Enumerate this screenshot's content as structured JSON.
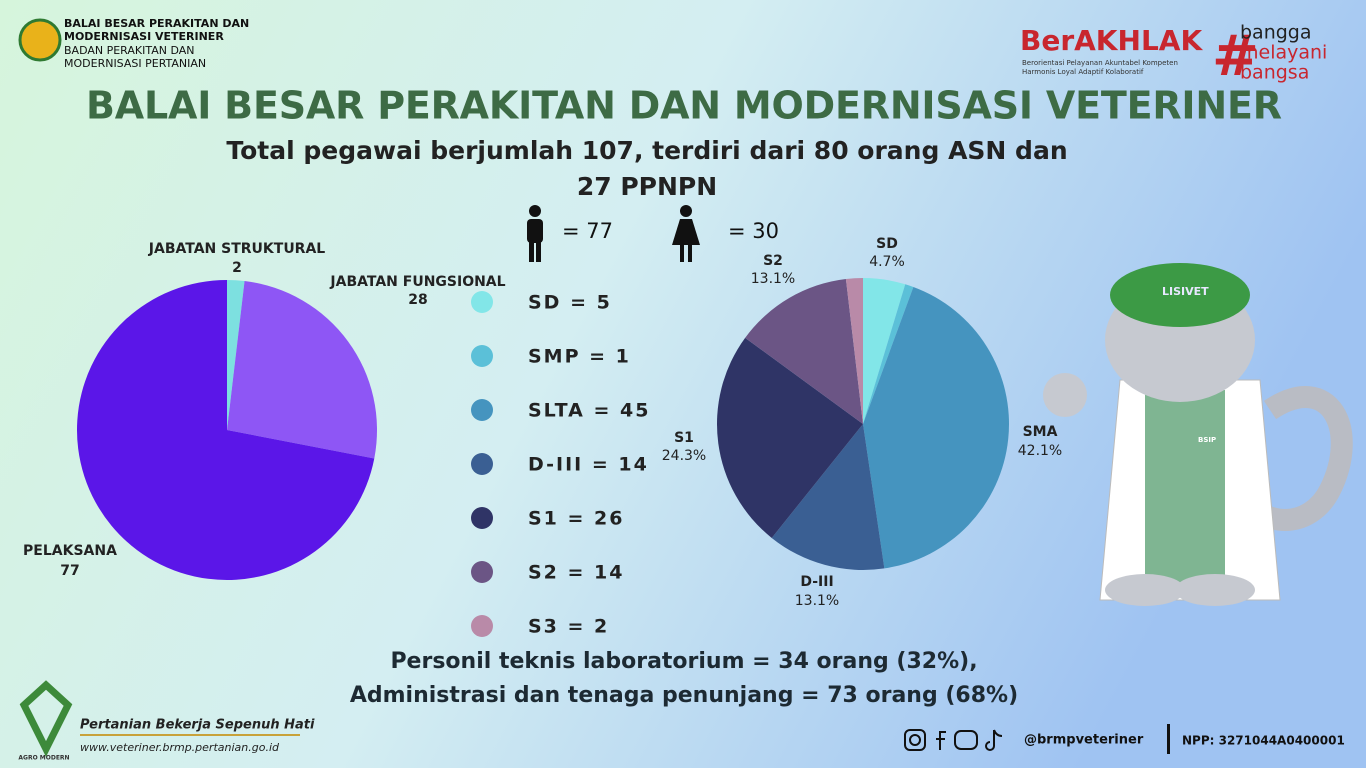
{
  "header": {
    "org_line1": "BALAI BESAR PERAKITAN DAN",
    "org_line2": "MODERNISASI VETERINER",
    "org_line3": "BADAN PERAKITAN DAN",
    "org_line4": "MODERNISASI PERTANIAN",
    "berakhlak": "BerAKHLAK",
    "berakhlak_sub1": "Berorientasi Pelayanan Akuntabel Kompeten",
    "berakhlak_sub2": "Harmonis Loyal Adaptif Kolaboratif",
    "bangga1": "bangga",
    "bangga2": "melayani",
    "bangga3": "bangsa",
    "title": "BALAI BESAR PERAKITAN DAN MODERNISASI VETERINER",
    "subtitle1": "Total pegawai berjumlah 107, terdiri dari 80 orang ASN dan",
    "subtitle2": "27 PPNPN",
    "male": "= 77",
    "female": "= 30"
  },
  "chart_data": [
    {
      "type": "pie",
      "categories": [
        "JABATAN STRUKTURAL",
        "JABATAN FUNGSIONAL",
        "PELAKSANA"
      ],
      "values": [
        2,
        28,
        77
      ],
      "colors": [
        "#7de0e0",
        "#8e56f5",
        "#5b16e8"
      ]
    },
    {
      "type": "pie",
      "categories": [
        "SD",
        "SMP",
        "SLTA",
        "D-III",
        "S1",
        "S2",
        "S3"
      ],
      "values": [
        5,
        1,
        45,
        14,
        26,
        14,
        2
      ],
      "colors": [
        "#82e6e8",
        "#5bc0d8",
        "#4594bf",
        "#3a5f93",
        "#2f3466",
        "#6b5585",
        "#b98aa8"
      ],
      "legend": [
        "SD = 5",
        "SMP = 1",
        "SLTA = 45",
        "D-III = 14",
        "S1 = 26",
        "S2 = 14",
        "S3 = 2"
      ],
      "slice_labels": [
        "SD",
        null,
        "SMA",
        "D-III",
        "S1",
        "S2",
        null
      ],
      "value_labels": [
        "4.7%",
        null,
        "42.1%",
        "13.1%",
        "24.3%",
        "13.1%",
        null
      ]
    }
  ],
  "bottom": {
    "line1": "Personil teknis laboratorium = 34 orang (32%),",
    "line2": "Administrasi dan tenaga penunjang = 73 orang (68%)"
  },
  "footer": {
    "brand": "AGRO MODERN",
    "tagline": "Pertanian Bekerja Sepenuh Hati",
    "website": "www.veteriner.brmp.pertanian.go.id",
    "handle": "@brmpveteriner",
    "npp": "NPP: 3271044A0400001"
  },
  "mascot": {
    "cap": "LISIVET",
    "badge": "BSIP"
  }
}
